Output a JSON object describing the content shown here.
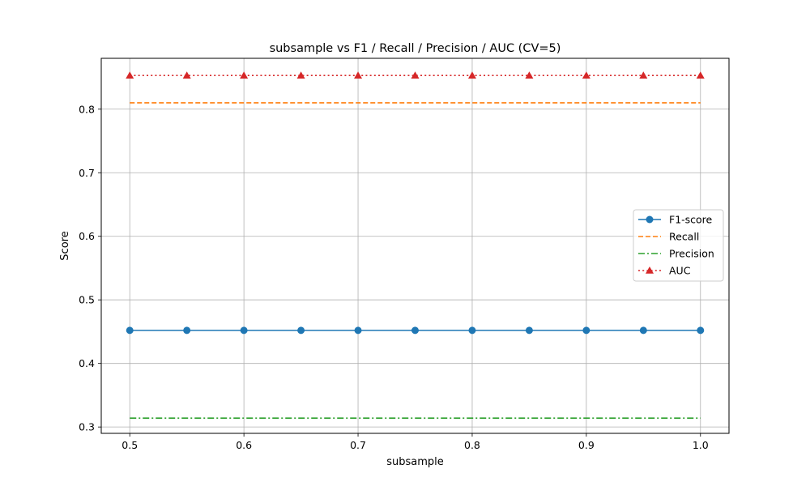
{
  "chart_data": {
    "type": "line",
    "title": "subsample vs F1 / Recall / Precision / AUC (CV=5)",
    "xlabel": "subsample",
    "ylabel": "Score",
    "xlim": [
      0.475,
      1.025
    ],
    "ylim": [
      0.29,
      0.88
    ],
    "xticks": [
      "0.5",
      "0.6",
      "0.7",
      "0.8",
      "0.9",
      "1.0"
    ],
    "yticks": [
      "0.3",
      "0.4",
      "0.5",
      "0.6",
      "0.7",
      "0.8"
    ],
    "grid": true,
    "legend_position": "center-right",
    "x": [
      0.5,
      0.55,
      0.6,
      0.65,
      0.7,
      0.75,
      0.8,
      0.85,
      0.9,
      0.95,
      1.0
    ],
    "series": [
      {
        "name": "F1-score",
        "color": "#1f77b4",
        "line_style": "solid",
        "marker": "circle",
        "values": [
          0.452,
          0.452,
          0.452,
          0.452,
          0.452,
          0.452,
          0.452,
          0.452,
          0.452,
          0.452,
          0.452
        ]
      },
      {
        "name": "Recall",
        "color": "#ff7f0e",
        "line_style": "dashed",
        "marker": "none",
        "values": [
          0.81,
          0.81,
          0.81,
          0.81,
          0.81,
          0.81,
          0.81,
          0.81,
          0.81,
          0.81,
          0.81
        ]
      },
      {
        "name": "Precision",
        "color": "#2ca02c",
        "line_style": "dashdot",
        "marker": "none",
        "values": [
          0.314,
          0.314,
          0.314,
          0.314,
          0.314,
          0.314,
          0.314,
          0.314,
          0.314,
          0.314,
          0.314
        ]
      },
      {
        "name": "AUC",
        "color": "#d62728",
        "line_style": "dotted",
        "marker": "triangle",
        "values": [
          0.853,
          0.853,
          0.853,
          0.853,
          0.853,
          0.853,
          0.853,
          0.853,
          0.853,
          0.853,
          0.853
        ]
      }
    ]
  }
}
